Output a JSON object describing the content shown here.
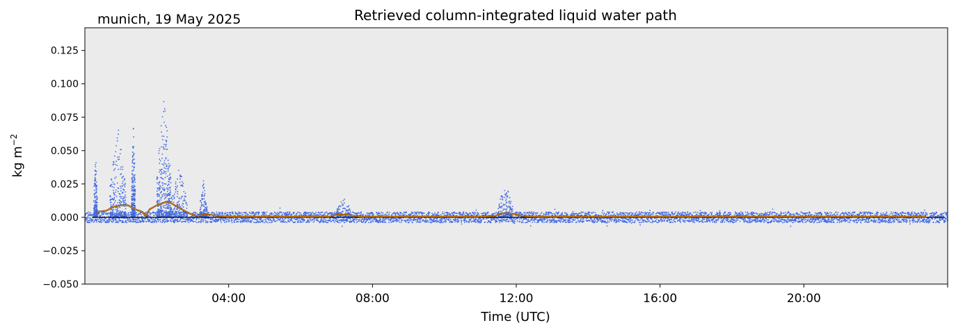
{
  "header": {
    "location_date": "munich, 19 May 2025",
    "title": "Retrieved column-integrated liquid water path"
  },
  "colors": {
    "background": "#ffffff",
    "plot_area": "#ebebeb",
    "scatter": "#4169e1",
    "mean_line": "#ff8c00",
    "zero_line": "#000000"
  },
  "chart_data": {
    "type": "scatter",
    "title": "Retrieved column-integrated liquid water path",
    "xlabel": "Time (UTC)",
    "ylabel_base": "kg m",
    "ylabel_exp": "−2",
    "x_unit": "hours UTC",
    "xlim": [
      0,
      24
    ],
    "ylim": [
      -0.05,
      0.142
    ],
    "y_ticks": [
      "−0.050",
      "−0.025",
      "0.000",
      "0.025",
      "0.050",
      "0.075",
      "0.100",
      "0.125"
    ],
    "y_tick_values": [
      -0.05,
      -0.025,
      0.0,
      0.025,
      0.05,
      0.075,
      0.1,
      0.125
    ],
    "x_ticks": [
      "04:00",
      "08:00",
      "12:00",
      "16:00",
      "20:00"
    ],
    "x_tick_values": [
      4,
      8,
      12,
      16,
      20
    ],
    "grid": false,
    "series": [
      {
        "kind": "scatter",
        "description_level": "noise_band",
        "band_low": -0.004,
        "band_high": 0.004,
        "x_range": [
          0,
          24
        ]
      },
      {
        "kind": "scatter",
        "cloud_events": [
          {
            "x_start": 0.25,
            "x_end": 0.35,
            "peak": 0.047
          },
          {
            "x_start": 0.7,
            "x_end": 1.15,
            "peak": 0.068
          },
          {
            "x_start": 1.3,
            "x_end": 1.4,
            "peak": 0.071
          },
          {
            "x_start": 2.0,
            "x_end": 2.4,
            "peak": 0.092
          },
          {
            "x_start": 2.4,
            "x_end": 2.85,
            "peak": 0.038
          },
          {
            "x_start": 3.2,
            "x_end": 3.4,
            "peak": 0.028
          },
          {
            "x_start": 7.0,
            "x_end": 7.4,
            "peak": 0.016
          },
          {
            "x_start": 11.5,
            "x_end": 11.9,
            "peak": 0.026
          }
        ]
      },
      {
        "kind": "line",
        "x": [
          0.3,
          0.6,
          0.8,
          1.0,
          1.2,
          1.4,
          1.6,
          1.7,
          1.8,
          2.0,
          2.2,
          2.3,
          2.5,
          2.7,
          2.9,
          3.1,
          3.3,
          3.5,
          3.7,
          4.0,
          6.8,
          7.0,
          7.3,
          7.5,
          7.7,
          11.0,
          11.4,
          11.6,
          11.8,
          12.0,
          12.2,
          12.5,
          14.0,
          16.0,
          18.0,
          20.0,
          23.4
        ],
        "y": [
          0.004,
          0.005,
          0.008,
          0.009,
          0.009,
          0.006,
          0.004,
          0.001,
          0.006,
          0.009,
          0.011,
          0.012,
          0.009,
          0.006,
          0.003,
          0.001,
          0.002,
          0.002,
          0.001,
          0.0005,
          0.0005,
          0.002,
          0.002,
          0.001,
          0.0005,
          0.0005,
          0.001,
          0.003,
          0.003,
          0.002,
          0.001,
          0.0005,
          0.0005,
          0.0005,
          0.0005,
          0.0005,
          0.0005
        ]
      }
    ]
  }
}
